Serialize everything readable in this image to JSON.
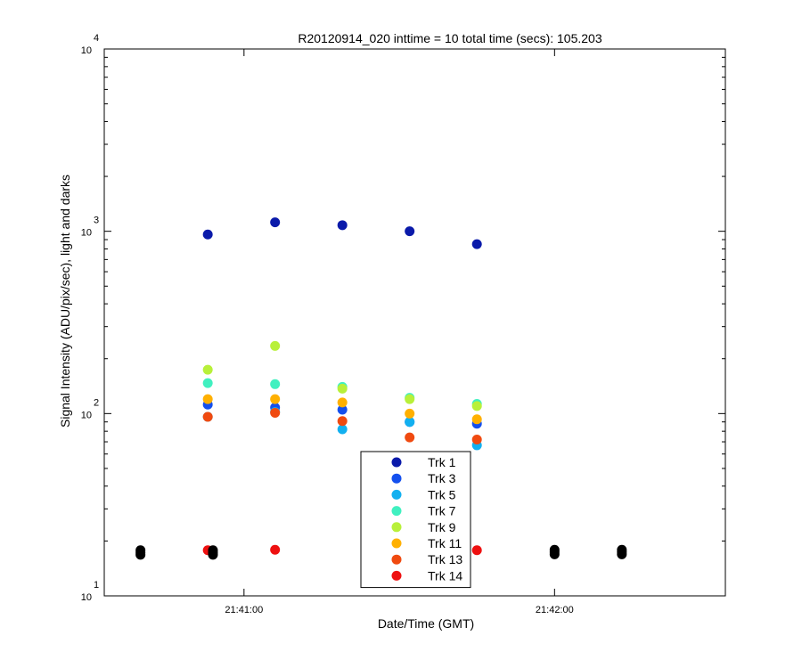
{
  "chart_data": {
    "type": "scatter",
    "title": "R20120914_020 inttime = 10 total time (secs): 105.203",
    "xlabel": "Date/Time (GMT)",
    "ylabel": "Signal Intensity (ADU/pix/sec), light and darks",
    "yscale": "log",
    "ylim": [
      10,
      10000
    ],
    "y_tick_labels": [
      {
        "value": 10,
        "base": "10",
        "exp": "1"
      },
      {
        "value": 100,
        "base": "10",
        "exp": "2"
      },
      {
        "value": 1000,
        "base": "10",
        "exp": "3"
      },
      {
        "value": 10000,
        "base": "10",
        "exp": "4"
      }
    ],
    "xlim": [
      "21:40:33",
      "21:42:33"
    ],
    "x_tick_labels": [
      {
        "value": "21:41:00",
        "label": "21:41:00"
      },
      {
        "value": "21:42:00",
        "label": "21:42:00"
      }
    ],
    "grid": false,
    "legend_position": "bottom-center",
    "series": [
      {
        "name": "Trk 1",
        "color": "#0a1aaa",
        "x": [
          "21:40:53",
          "21:41:06",
          "21:41:19",
          "21:41:32",
          "21:41:45"
        ],
        "y": [
          960,
          1120,
          1080,
          1000,
          850
        ]
      },
      {
        "name": "Trk 3",
        "color": "#1450ee",
        "x": [
          "21:40:53",
          "21:41:06",
          "21:41:19",
          "21:41:32",
          "21:41:45"
        ],
        "y": [
          112,
          108,
          105,
          90,
          88
        ]
      },
      {
        "name": "Trk 5",
        "color": "#12b0f0",
        "x": [
          "21:40:53",
          "21:41:06",
          "21:41:19",
          "21:41:32",
          "21:41:45"
        ],
        "y": [
          96,
          102,
          82,
          90,
          67
        ]
      },
      {
        "name": "Trk 7",
        "color": "#40f0c0",
        "x": [
          "21:40:53",
          "21:41:06",
          "21:41:19",
          "21:41:32",
          "21:41:45"
        ],
        "y": [
          147,
          145,
          140,
          122,
          113
        ]
      },
      {
        "name": "Trk 9",
        "color": "#b8f03a",
        "x": [
          "21:40:53",
          "21:41:06",
          "21:41:19",
          "21:41:32",
          "21:41:45"
        ],
        "y": [
          174,
          235,
          137,
          120,
          110
        ]
      },
      {
        "name": "Trk 11",
        "color": "#ffb000",
        "x": [
          "21:40:53",
          "21:41:06",
          "21:41:19",
          "21:41:32",
          "21:41:45"
        ],
        "y": [
          120,
          120,
          115,
          100,
          93
        ]
      },
      {
        "name": "Trk 13",
        "color": "#f04a10",
        "x": [
          "21:40:53",
          "21:41:06",
          "21:41:19",
          "21:41:32",
          "21:41:45"
        ],
        "y": [
          96,
          101,
          91,
          74,
          72
        ]
      },
      {
        "name": "Trk 14",
        "color": "#ee1010",
        "x": [
          "21:40:53",
          "21:41:06",
          "21:41:32",
          "21:41:45"
        ],
        "y": [
          17.8,
          17.9,
          17.9,
          17.8
        ]
      },
      {
        "name": "",
        "color": "#000000",
        "x": [
          "21:40:40",
          "21:40:40",
          "21:40:40",
          "21:40:54",
          "21:40:54",
          "21:40:54",
          "21:42:00",
          "21:42:00",
          "21:42:00",
          "21:42:13",
          "21:42:13",
          "21:42:13"
        ],
        "y": [
          16.8,
          17.3,
          17.8,
          16.8,
          17.3,
          17.8,
          16.9,
          17.4,
          17.9,
          16.9,
          17.4,
          17.9
        ]
      }
    ]
  }
}
